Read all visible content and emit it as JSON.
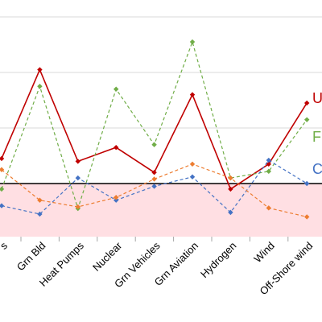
{
  "chart_data": {
    "type": "line",
    "categories": [
      "s",
      "Grn Bld",
      "Heat Pumps",
      "Nuclear",
      "Grn Vehicles",
      "Grn Aviation",
      "Hydrogen",
      "Wind",
      "Off-Shore wind"
    ],
    "ylim": [
      -1.0,
      3.2
    ],
    "grid": {
      "horizontal": true,
      "levels": [
        0,
        1,
        2,
        3
      ]
    },
    "reference_line": 0,
    "shaded_band": {
      "from": -1.0,
      "to": 0,
      "color": "#ffdfe3"
    },
    "series": [
      {
        "label": "U",
        "color": "#c00000",
        "dash": "solid",
        "values": [
          0.45,
          2.05,
          0.4,
          0.65,
          0.2,
          1.6,
          -0.1,
          0.35,
          1.45
        ]
      },
      {
        "label": "F",
        "color": "#70ad47",
        "dash": "dashed",
        "values": [
          -0.1,
          1.75,
          -0.45,
          1.7,
          0.7,
          2.55,
          0.1,
          0.22,
          1.15
        ]
      },
      {
        "label": "C",
        "color": "#4472c4",
        "dash": "dashed",
        "values": [
          -0.4,
          -0.55,
          0.1,
          -0.3,
          -0.05,
          0.12,
          -0.52,
          0.42,
          0.0
        ]
      },
      {
        "label": "",
        "color": "#ed7d31",
        "dash": "dashed",
        "values": [
          0.25,
          -0.3,
          -0.42,
          -0.25,
          0.08,
          0.35,
          0.1,
          -0.44,
          -0.6
        ]
      }
    ]
  }
}
